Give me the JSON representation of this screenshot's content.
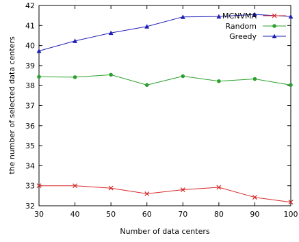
{
  "chart_data": {
    "type": "line",
    "xlabel": "Number of data centers",
    "ylabel": "the number of selected data centers",
    "xlim": [
      30,
      100
    ],
    "ylim": [
      32,
      42
    ],
    "x_ticks": [
      "30",
      "40",
      "50",
      "60",
      "70",
      "80",
      "90",
      "100"
    ],
    "y_ticks": [
      "32",
      "33",
      "34",
      "35",
      "36",
      "37",
      "38",
      "39",
      "40",
      "41",
      "42"
    ],
    "x": [
      30,
      40,
      50,
      60,
      70,
      80,
      90,
      100
    ],
    "grid": false,
    "legend_position": "top-right",
    "series": [
      {
        "name": "MCNVMA",
        "values": [
          33.0,
          33.0,
          32.88,
          32.6,
          32.8,
          32.92,
          32.42,
          32.18
        ],
        "color": "#d62728",
        "marker": "x"
      },
      {
        "name": "Random",
        "values": [
          38.44,
          38.42,
          38.54,
          38.03,
          38.47,
          38.22,
          38.33,
          38.03
        ],
        "color": "#2ca02c",
        "marker": "circle"
      },
      {
        "name": "Greedy",
        "values": [
          39.73,
          40.23,
          40.63,
          40.95,
          41.43,
          41.45,
          41.55,
          41.45
        ],
        "color": "#1f1fb4",
        "marker": "triangle"
      }
    ]
  }
}
